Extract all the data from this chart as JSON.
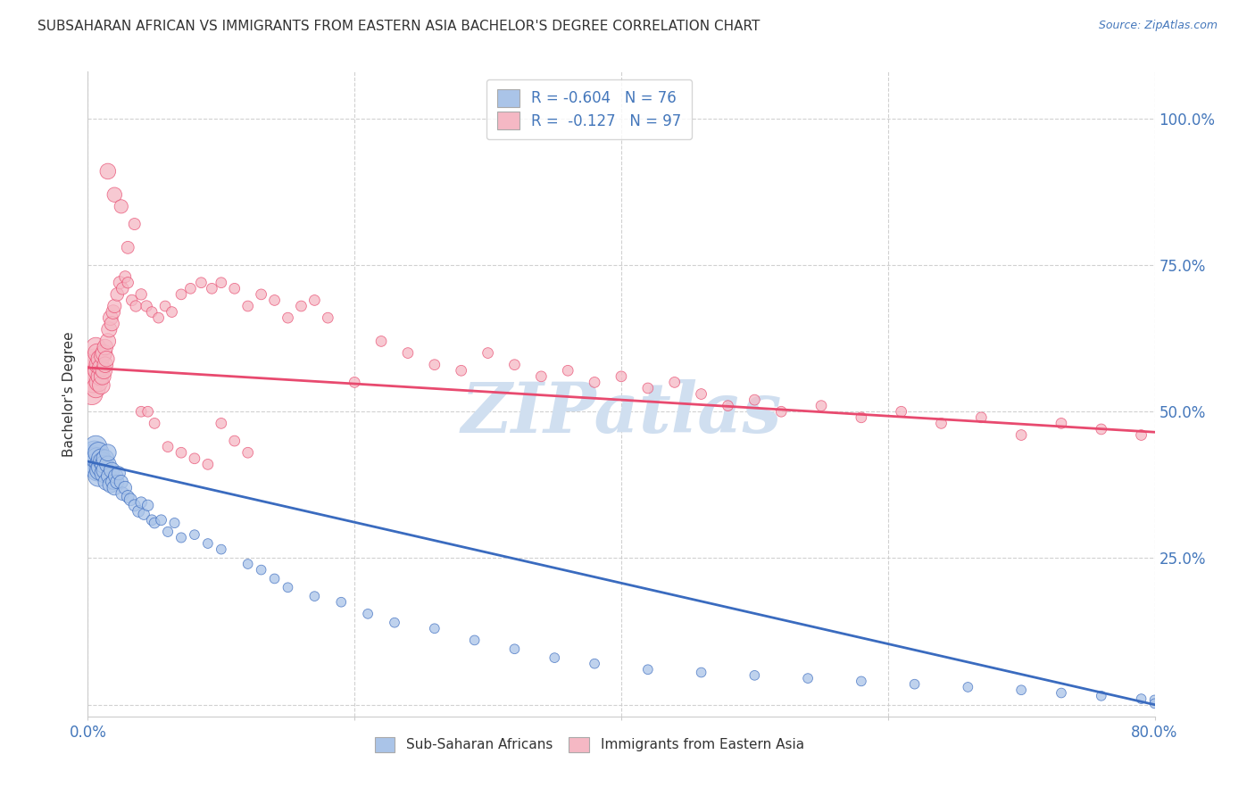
{
  "title": "SUBSAHARAN AFRICAN VS IMMIGRANTS FROM EASTERN ASIA BACHELOR'S DEGREE CORRELATION CHART",
  "source": "Source: ZipAtlas.com",
  "ylabel": "Bachelor's Degree",
  "ytick_values": [
    0.0,
    0.25,
    0.5,
    0.75,
    1.0
  ],
  "ytick_labels": [
    "",
    "25.0%",
    "50.0%",
    "75.0%",
    "100.0%"
  ],
  "xlim": [
    0.0,
    0.8
  ],
  "ylim": [
    -0.02,
    1.08
  ],
  "blue_R": -0.604,
  "blue_N": 76,
  "pink_R": -0.127,
  "pink_N": 97,
  "blue_color": "#aac4e8",
  "pink_color": "#f5b8c4",
  "blue_line_color": "#3a6bbf",
  "pink_line_color": "#e84a6f",
  "legend_label_blue": "Sub-Saharan Africans",
  "legend_label_pink": "Immigrants from Eastern Asia",
  "watermark": "ZIPatlas",
  "blue_line_start_y": 0.415,
  "blue_line_end_y": 0.0,
  "pink_line_start_y": 0.575,
  "pink_line_end_y": 0.465,
  "blue_scatter_x": [
    0.002,
    0.003,
    0.004,
    0.005,
    0.005,
    0.006,
    0.006,
    0.007,
    0.007,
    0.008,
    0.008,
    0.009,
    0.009,
    0.01,
    0.01,
    0.011,
    0.012,
    0.012,
    0.013,
    0.013,
    0.014,
    0.015,
    0.015,
    0.016,
    0.017,
    0.018,
    0.019,
    0.02,
    0.021,
    0.022,
    0.023,
    0.025,
    0.026,
    0.028,
    0.03,
    0.032,
    0.035,
    0.038,
    0.04,
    0.042,
    0.045,
    0.048,
    0.05,
    0.055,
    0.06,
    0.065,
    0.07,
    0.08,
    0.09,
    0.1,
    0.12,
    0.13,
    0.14,
    0.15,
    0.17,
    0.19,
    0.21,
    0.23,
    0.26,
    0.29,
    0.32,
    0.35,
    0.38,
    0.42,
    0.46,
    0.5,
    0.54,
    0.58,
    0.62,
    0.66,
    0.7,
    0.73,
    0.76,
    0.79,
    0.8,
    0.8
  ],
  "blue_scatter_y": [
    0.42,
    0.41,
    0.415,
    0.43,
    0.42,
    0.44,
    0.41,
    0.4,
    0.42,
    0.39,
    0.43,
    0.41,
    0.4,
    0.42,
    0.405,
    0.415,
    0.395,
    0.41,
    0.4,
    0.42,
    0.38,
    0.41,
    0.43,
    0.39,
    0.375,
    0.4,
    0.38,
    0.37,
    0.39,
    0.38,
    0.395,
    0.38,
    0.36,
    0.37,
    0.355,
    0.35,
    0.34,
    0.33,
    0.345,
    0.325,
    0.34,
    0.315,
    0.31,
    0.315,
    0.295,
    0.31,
    0.285,
    0.29,
    0.275,
    0.265,
    0.24,
    0.23,
    0.215,
    0.2,
    0.185,
    0.175,
    0.155,
    0.14,
    0.13,
    0.11,
    0.095,
    0.08,
    0.07,
    0.06,
    0.055,
    0.05,
    0.045,
    0.04,
    0.035,
    0.03,
    0.025,
    0.02,
    0.015,
    0.01,
    0.008,
    0.002
  ],
  "blue_scatter_s": [
    120,
    100,
    90,
    90,
    85,
    80,
    80,
    75,
    75,
    70,
    70,
    65,
    65,
    60,
    60,
    55,
    55,
    50,
    50,
    50,
    45,
    45,
    45,
    40,
    40,
    40,
    35,
    35,
    35,
    30,
    30,
    30,
    28,
    28,
    25,
    25,
    22,
    22,
    20,
    20,
    20,
    18,
    18,
    18,
    16,
    16,
    16,
    15,
    15,
    15,
    15,
    15,
    15,
    15,
    15,
    15,
    15,
    15,
    15,
    15,
    15,
    15,
    15,
    15,
    15,
    15,
    15,
    15,
    15,
    15,
    15,
    15,
    15,
    15,
    15,
    15
  ],
  "pink_scatter_x": [
    0.002,
    0.003,
    0.003,
    0.004,
    0.004,
    0.005,
    0.005,
    0.006,
    0.006,
    0.007,
    0.007,
    0.008,
    0.008,
    0.009,
    0.009,
    0.01,
    0.01,
    0.011,
    0.011,
    0.012,
    0.012,
    0.013,
    0.013,
    0.014,
    0.015,
    0.016,
    0.017,
    0.018,
    0.019,
    0.02,
    0.022,
    0.024,
    0.026,
    0.028,
    0.03,
    0.033,
    0.036,
    0.04,
    0.044,
    0.048,
    0.053,
    0.058,
    0.063,
    0.07,
    0.077,
    0.085,
    0.093,
    0.1,
    0.11,
    0.12,
    0.13,
    0.14,
    0.15,
    0.16,
    0.17,
    0.18,
    0.2,
    0.22,
    0.24,
    0.26,
    0.28,
    0.3,
    0.32,
    0.34,
    0.36,
    0.38,
    0.4,
    0.42,
    0.44,
    0.46,
    0.48,
    0.5,
    0.52,
    0.55,
    0.58,
    0.61,
    0.64,
    0.67,
    0.7,
    0.73,
    0.76,
    0.79,
    0.015,
    0.02,
    0.025,
    0.03,
    0.035,
    0.04,
    0.045,
    0.05,
    0.06,
    0.07,
    0.08,
    0.09,
    0.1,
    0.11,
    0.12
  ],
  "pink_scatter_y": [
    0.56,
    0.53,
    0.57,
    0.55,
    0.58,
    0.56,
    0.59,
    0.54,
    0.61,
    0.57,
    0.6,
    0.55,
    0.58,
    0.56,
    0.59,
    0.545,
    0.575,
    0.56,
    0.595,
    0.57,
    0.6,
    0.58,
    0.61,
    0.59,
    0.62,
    0.64,
    0.66,
    0.65,
    0.67,
    0.68,
    0.7,
    0.72,
    0.71,
    0.73,
    0.72,
    0.69,
    0.68,
    0.7,
    0.68,
    0.67,
    0.66,
    0.68,
    0.67,
    0.7,
    0.71,
    0.72,
    0.71,
    0.72,
    0.71,
    0.68,
    0.7,
    0.69,
    0.66,
    0.68,
    0.69,
    0.66,
    0.55,
    0.62,
    0.6,
    0.58,
    0.57,
    0.6,
    0.58,
    0.56,
    0.57,
    0.55,
    0.56,
    0.54,
    0.55,
    0.53,
    0.51,
    0.52,
    0.5,
    0.51,
    0.49,
    0.5,
    0.48,
    0.49,
    0.46,
    0.48,
    0.47,
    0.46,
    0.91,
    0.87,
    0.85,
    0.78,
    0.82,
    0.5,
    0.5,
    0.48,
    0.44,
    0.43,
    0.42,
    0.41,
    0.48,
    0.45,
    0.43
  ],
  "pink_scatter_s": [
    80,
    75,
    75,
    70,
    70,
    65,
    65,
    60,
    60,
    55,
    55,
    55,
    55,
    50,
    50,
    50,
    50,
    45,
    45,
    45,
    45,
    40,
    40,
    40,
    40,
    38,
    36,
    34,
    32,
    30,
    28,
    26,
    24,
    22,
    20,
    20,
    20,
    20,
    20,
    18,
    18,
    18,
    18,
    18,
    18,
    18,
    18,
    18,
    18,
    18,
    18,
    18,
    18,
    18,
    18,
    18,
    18,
    18,
    18,
    18,
    18,
    18,
    18,
    18,
    18,
    18,
    18,
    18,
    18,
    18,
    18,
    18,
    18,
    18,
    18,
    18,
    18,
    18,
    18,
    18,
    18,
    18,
    40,
    35,
    30,
    25,
    22,
    18,
    18,
    18,
    18,
    18,
    18,
    18,
    18,
    18,
    18
  ],
  "grid_color": "#cccccc",
  "title_color": "#333333",
  "tick_color": "#4477bb",
  "background_color": "#ffffff",
  "watermark_color": "#d0dff0",
  "fig_width": 14.06,
  "fig_height": 8.92
}
